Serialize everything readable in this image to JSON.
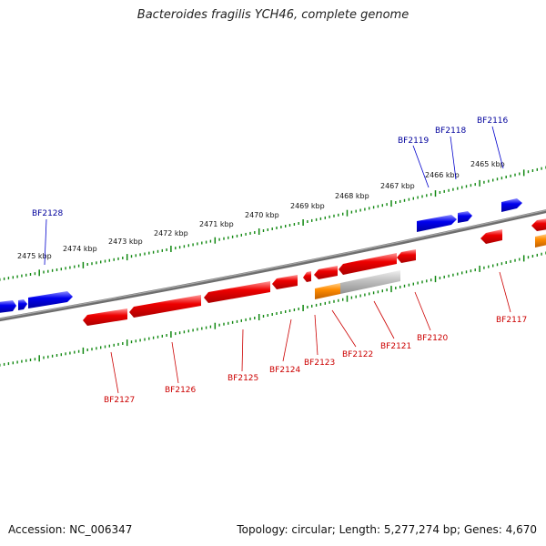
{
  "title": "Bacteroides fragilis YCH46, complete genome",
  "footer": {
    "accession": "Accession: NC_006347",
    "summary": "Topology: circular; Length: 5,277,274 bp; Genes: 4,670"
  },
  "colors": {
    "forward_gene": "#0000ee",
    "reverse_gene": "#ee0000",
    "highlight_gene": "#ff8c00",
    "gray_gene": "#b0b0b0",
    "backbone": "#777777",
    "tick": "#118811",
    "forward_label": "#00009c",
    "reverse_label": "#cc0000"
  },
  "kbp_labels": [
    "2475 kbp",
    "2474 kbp",
    "2473 kbp",
    "2472 kbp",
    "2471 kbp",
    "2470 kbp",
    "2469 kbp",
    "2468 kbp",
    "2467 kbp",
    "2466 kbp",
    "2465 kbp"
  ],
  "forward_genes": [
    "BF2128",
    "BF2119",
    "BF2118",
    "BF2116"
  ],
  "reverse_genes": [
    "BF2127",
    "BF2126",
    "BF2125",
    "BF2124",
    "BF2123",
    "BF2122",
    "BF2121",
    "BF2120",
    "BF2117"
  ]
}
